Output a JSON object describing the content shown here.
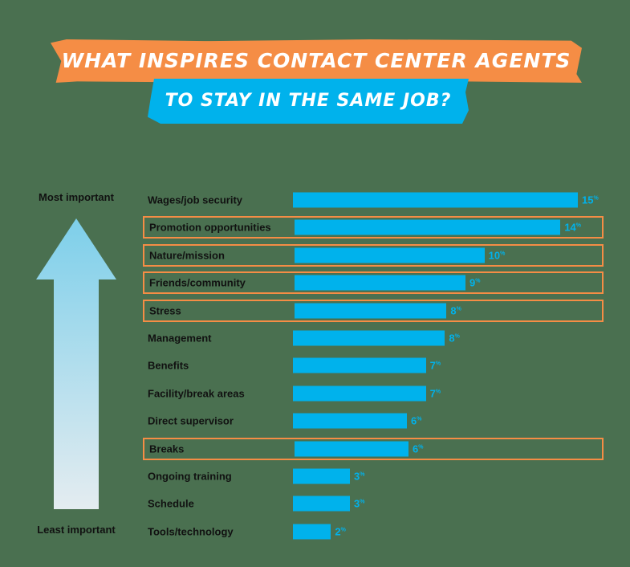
{
  "title": {
    "line1": "What inspires contact center agents",
    "line2": "to stay in the same job?"
  },
  "axis": {
    "top_label": "Most important",
    "bottom_label": "Least important"
  },
  "colors": {
    "background": "#4a7050",
    "bar": "#00b2ec",
    "highlight_border": "#f58d45",
    "title_orange": "#f58d45",
    "title_blue": "#00b2ec"
  },
  "chart_data": {
    "type": "bar",
    "orientation": "horizontal",
    "title": "What inspires contact center agents to stay in the same job?",
    "xlabel": "",
    "ylabel": "Most important → Least important",
    "unit": "%",
    "categories": [
      "Wages/job security",
      "Promotion opportunities",
      "Nature/mission",
      "Friends/community",
      "Stress",
      "Management",
      "Benefits",
      "Facility/break areas",
      "Direct supervisor",
      "Breaks",
      "Ongoing training",
      "Schedule",
      "Tools/technology"
    ],
    "values": [
      15,
      14,
      10,
      9,
      8,
      8,
      7,
      7,
      6,
      6,
      3,
      3,
      2
    ],
    "value_labels": [
      "15%",
      "14%",
      "10%",
      "9%",
      "8%",
      "8%",
      "7%",
      "7%",
      "6%",
      "6%",
      "3%",
      "3%",
      "2%"
    ],
    "highlighted": [
      false,
      true,
      true,
      true,
      true,
      false,
      false,
      false,
      false,
      true,
      false,
      false,
      false
    ],
    "grid": false,
    "legend": null
  }
}
